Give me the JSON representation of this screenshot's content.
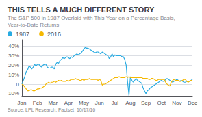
{
  "chart_data": {
    "type": "line",
    "title": "THIS TELLS A MUCH DIFFERENT STORY",
    "subtitle": "The S&P 500 in 1987 Overlaid with This Year on a Percentage Basis, Year-to-Date Returns",
    "source": "Source: LPL Research, Factset  10/17/16",
    "categories": [
      "Jan",
      null,
      null,
      null,
      null,
      null,
      null,
      null,
      null,
      null,
      null,
      "Feb",
      null,
      null,
      null,
      null,
      null,
      null,
      null,
      null,
      null,
      null,
      "Mar",
      null,
      null,
      null,
      null,
      null,
      null,
      null,
      null,
      null,
      null,
      "Apr",
      null,
      null,
      null,
      null,
      null,
      null,
      null,
      null,
      null,
      null,
      "May",
      null,
      null,
      null,
      null,
      null,
      null,
      null,
      null,
      null,
      null,
      "Jun",
      null,
      null,
      null,
      null,
      null,
      null,
      null,
      null,
      null,
      null,
      "Jul",
      null,
      null,
      null,
      null,
      null,
      null,
      null,
      null,
      null,
      null,
      "Aug",
      null,
      null,
      null,
      null,
      null,
      null,
      null,
      null,
      null,
      null,
      "Sep",
      null,
      null,
      null,
      null,
      null,
      null,
      null,
      null,
      null,
      null,
      "Oct",
      null,
      null,
      null,
      null,
      null,
      null,
      null,
      null,
      null,
      null,
      "Nov",
      null,
      null,
      null,
      null,
      null,
      null,
      null,
      null,
      null,
      null,
      "Dec"
    ],
    "series": [
      {
        "name": "1987",
        "color": "#29abe2",
        "values": [
          0,
          4,
          8,
          13,
          15,
          19,
          18,
          16,
          18,
          21,
          19,
          21,
          21,
          19,
          18,
          20,
          21,
          21,
          18,
          17,
          17,
          18,
          18,
          16,
          21,
          23,
          22,
          25,
          26,
          28,
          27,
          28,
          29,
          28,
          27,
          29,
          28,
          30,
          31,
          32,
          31,
          32,
          33,
          35,
          37,
          39,
          38,
          38,
          37,
          36,
          35,
          34,
          33,
          34,
          34,
          33,
          32,
          34,
          33,
          32,
          31,
          30,
          27,
          29,
          32,
          29,
          31,
          30,
          30,
          30,
          30,
          29,
          29,
          26,
          20,
          2,
          -12,
          8,
          4,
          2,
          4,
          6,
          4,
          3,
          2,
          1,
          -4,
          -7,
          -10,
          -7,
          -6,
          -4,
          -3,
          -2,
          -1,
          0,
          1,
          2,
          3,
          4,
          3,
          3,
          5,
          6,
          5,
          4,
          3,
          2,
          3,
          4,
          5,
          4,
          3,
          4,
          3,
          2,
          2,
          3,
          3,
          3,
          4,
          5
        ]
      },
      {
        "name": "2016",
        "color": "#f5b800",
        "values": [
          0,
          -1,
          -3,
          -5,
          -7,
          -7,
          -6,
          -6,
          -7,
          -7,
          -6,
          -5,
          -5,
          -4,
          -4,
          -3,
          -2,
          0,
          1,
          2,
          1,
          2,
          2,
          3,
          2,
          3,
          4,
          3,
          4,
          3,
          3,
          3,
          4,
          3,
          4,
          5,
          5,
          5,
          6,
          5,
          5,
          4,
          4,
          5,
          4,
          5,
          5,
          5,
          6,
          5,
          5,
          5,
          5,
          5,
          4,
          5,
          4,
          -1,
          0,
          0,
          1,
          2,
          3,
          4,
          5,
          6,
          7,
          7,
          7,
          8,
          7,
          7,
          7,
          7,
          8,
          7,
          8,
          7,
          7,
          7,
          7,
          7,
          7,
          7,
          7,
          7,
          6,
          6,
          6,
          6,
          5,
          5,
          6,
          6,
          5,
          4,
          4,
          5,
          5,
          5,
          5,
          5,
          2,
          0,
          -1,
          -2,
          2,
          4,
          5,
          4,
          4,
          4,
          3,
          3,
          4,
          5,
          5,
          3,
          2,
          3,
          4,
          4
        ]
      }
    ],
    "ylim": [
      -13,
      47
    ],
    "yticks": [
      {
        "value": -10,
        "label": "-10%"
      },
      0,
      {
        "value": 10,
        "label": "10%"
      },
      {
        "value": 20,
        "label": "20%"
      },
      {
        "value": 30,
        "label": "30%"
      },
      {
        "value": 40,
        "label": "40%"
      }
    ],
    "grid": true,
    "legend": "upper left"
  }
}
